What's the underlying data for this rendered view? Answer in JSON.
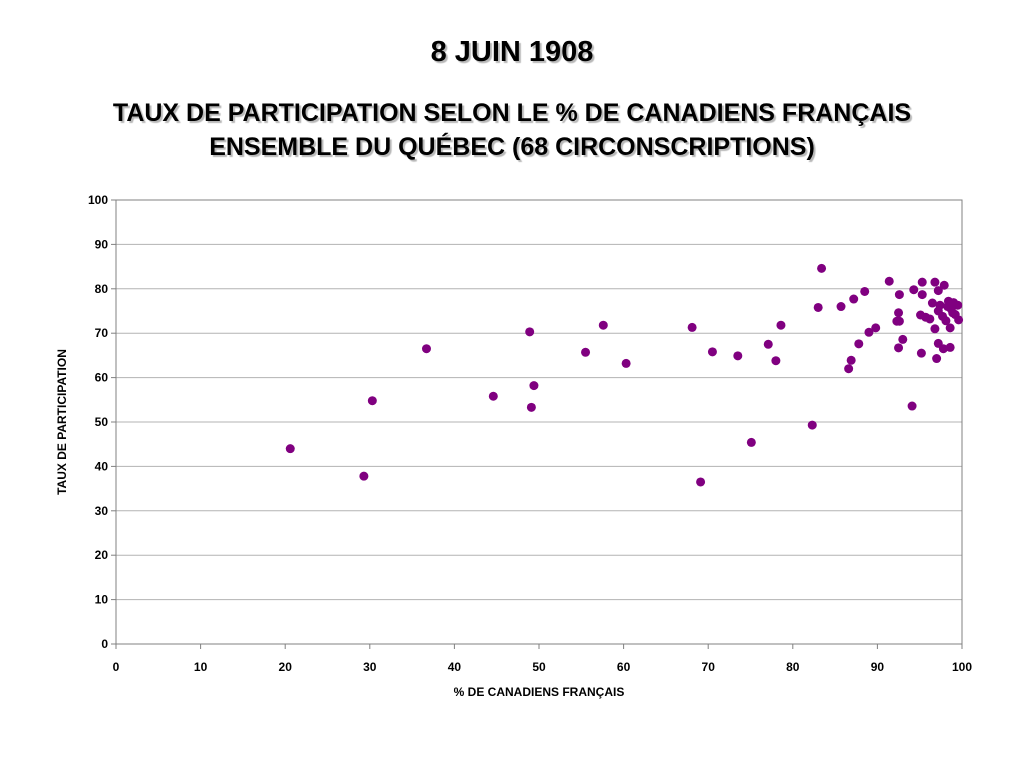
{
  "title": "8 JUIN 1908",
  "subtitle_line1": "TAUX DE PARTICIPATION SELON LE % DE CANADIENS FRANÇAIS",
  "subtitle_line2": "ENSEMBLE DU QUÉBEC (68 CIRCONSCRIPTIONS)",
  "colors": {
    "marker": "#800080",
    "grid": "#b3b3b3",
    "axis": "#808080"
  },
  "chart_data": {
    "type": "scatter",
    "xlabel": "% DE CANADIENS FRANÇAIS",
    "ylabel": "TAUX DE PARTICIPATION",
    "xlim": [
      0,
      100
    ],
    "ylim": [
      0,
      100
    ],
    "xticks": [
      0,
      10,
      20,
      30,
      40,
      50,
      60,
      70,
      80,
      90,
      100
    ],
    "yticks": [
      0,
      10,
      20,
      30,
      40,
      50,
      60,
      70,
      80,
      90,
      100
    ],
    "grid": true,
    "legend": false,
    "series": [
      {
        "points": [
          [
            20.6,
            44
          ],
          [
            29.3,
            37.8
          ],
          [
            30.3,
            54.8
          ],
          [
            36.7,
            66.5
          ],
          [
            44.6,
            55.8
          ],
          [
            48.9,
            70.3
          ],
          [
            49.1,
            53.3
          ],
          [
            49.4,
            58.2
          ],
          [
            55.5,
            65.7
          ],
          [
            57.6,
            71.8
          ],
          [
            60.3,
            63.2
          ],
          [
            68.1,
            71.3
          ],
          [
            69.1,
            36.5
          ],
          [
            70.5,
            65.8
          ],
          [
            73.5,
            64.9
          ],
          [
            75.1,
            45.4
          ],
          [
            77.1,
            67.5
          ],
          [
            78.0,
            63.8
          ],
          [
            78.6,
            71.8
          ],
          [
            82.3,
            49.3
          ],
          [
            83.0,
            75.8
          ],
          [
            83.4,
            84.6
          ],
          [
            85.7,
            76.0
          ],
          [
            86.6,
            62.0
          ],
          [
            86.9,
            63.9
          ],
          [
            87.2,
            77.7
          ],
          [
            87.8,
            67.6
          ],
          [
            88.5,
            79.4
          ],
          [
            89.0,
            70.2
          ],
          [
            89.8,
            71.2
          ],
          [
            91.4,
            81.7
          ],
          [
            92.3,
            72.7
          ],
          [
            92.5,
            74.6
          ],
          [
            92.6,
            78.7
          ],
          [
            92.6,
            72.7
          ],
          [
            92.5,
            66.7
          ],
          [
            93.0,
            68.6
          ],
          [
            94.1,
            53.6
          ],
          [
            94.3,
            79.8
          ],
          [
            95.1,
            74.1
          ],
          [
            95.2,
            65.5
          ],
          [
            95.3,
            81.5
          ],
          [
            95.3,
            78.7
          ],
          [
            95.7,
            73.6
          ],
          [
            96.2,
            73.2
          ],
          [
            96.5,
            76.8
          ],
          [
            96.8,
            81.5
          ],
          [
            96.8,
            71.0
          ],
          [
            97.0,
            64.3
          ],
          [
            97.2,
            67.7
          ],
          [
            97.2,
            75.0
          ],
          [
            97.4,
            76.3
          ],
          [
            97.7,
            73.8
          ],
          [
            97.8,
            66.5
          ],
          [
            97.9,
            80.8
          ],
          [
            98.1,
            72.8
          ],
          [
            98.3,
            76.0
          ],
          [
            98.4,
            77.2
          ],
          [
            98.6,
            71.2
          ],
          [
            98.6,
            66.8
          ],
          [
            98.9,
            74.6
          ],
          [
            98.7,
            75.5
          ],
          [
            99.0,
            76.9
          ],
          [
            99.1,
            76.4
          ],
          [
            99.2,
            74.2
          ],
          [
            99.6,
            73.0
          ],
          [
            99.5,
            76.3
          ],
          [
            97.2,
            79.6
          ]
        ]
      }
    ]
  }
}
